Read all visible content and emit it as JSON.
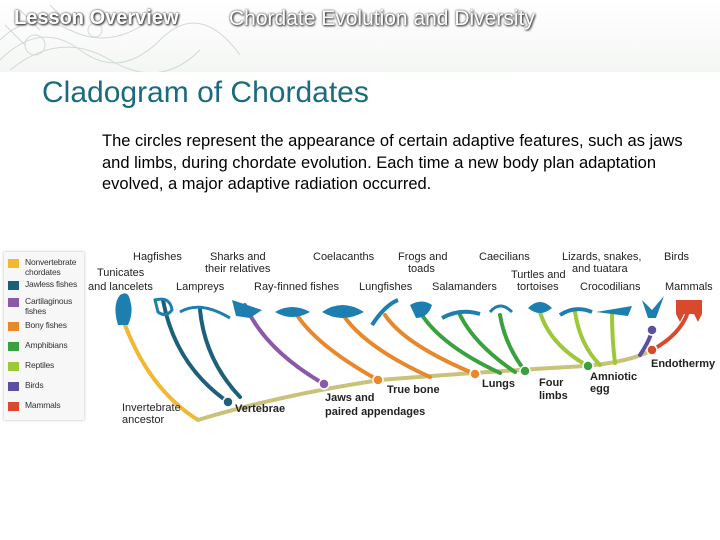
{
  "header": {
    "lesson": "Lesson Overview",
    "subtitle": "Chordate Evolution and Diversity"
  },
  "title": "Cladogram of Chordates",
  "body": "The circles represent the appearance of certain adaptive features, such as jaws and limbs, during chordate evolution. Each time a new body plan adaptation evolved, a major adaptive radiation occurred.",
  "legend": [
    {
      "label": "Nonvertebrate chordates",
      "color": "#f2b733"
    },
    {
      "label": "Jawless fishes",
      "color": "#1e5f7a"
    },
    {
      "label": "Cartilaginous fishes",
      "color": "#8a5aa8"
    },
    {
      "label": "Bony fishes",
      "color": "#e9872b"
    },
    {
      "label": "Amphibians",
      "color": "#3aa13f"
    },
    {
      "label": "Reptiles",
      "color": "#9cc83a"
    },
    {
      "label": "Birds",
      "color": "#5c4fa0"
    },
    {
      "label": "Mammals",
      "color": "#d94a2c"
    }
  ],
  "taxa": {
    "hagfishes": "Hagfishes",
    "sharks": [
      "Sharks and",
      "their relatives"
    ],
    "coelacanths": "Coelacanths",
    "frogs": [
      "Frogs and",
      "toads"
    ],
    "caecilians": "Caecilians",
    "lizards": [
      "Lizards, snakes,",
      "and tuatara"
    ],
    "birds": "Birds",
    "tunicates": [
      "Tunicates",
      "and lancelets"
    ],
    "lampreys": "Lampreys",
    "rayfinned": "Ray-finned fishes",
    "lungfishes": "Lungfishes",
    "salamanders": "Salamanders",
    "turtles": [
      "Turtles and",
      "tortoises"
    ],
    "crocodilians": "Crocodilians",
    "mammals": "Mammals"
  },
  "traits": {
    "ancestor": [
      "Invertebrate",
      "ancestor"
    ],
    "vertebrae": "Vertebrae",
    "jaws": [
      "Jaws and",
      "paired appendages"
    ],
    "truebone": "True bone",
    "lungs": "Lungs",
    "fourlimbs": [
      "Four",
      "limbs"
    ],
    "amniotic": [
      "Amniotic",
      "egg"
    ],
    "endothermy": "Endothermy"
  }
}
